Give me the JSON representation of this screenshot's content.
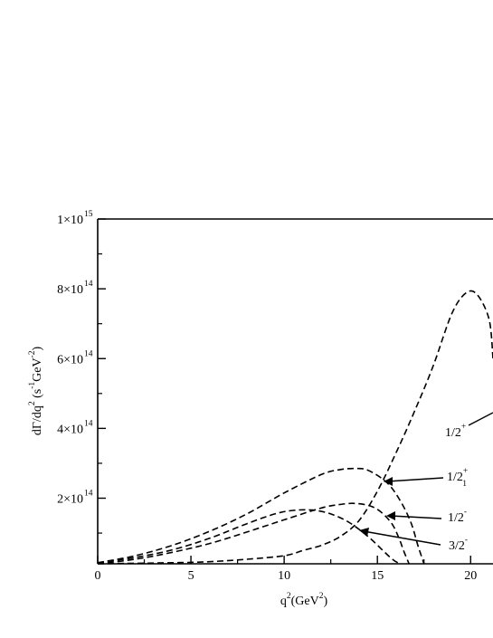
{
  "chart_data": {
    "type": "line",
    "title": "",
    "xlabel": {
      "base": "q",
      "base_sup": "2",
      "open": "(GeV",
      "unit_sup": "2",
      "close": ")"
    },
    "ylabel": {
      "p1": "dΓ/dq",
      "p1_sup": "2",
      "p2": " (s",
      "p2_sup": "-1",
      "p3": "GeV",
      "p3_sup": "-2",
      "p4": ")"
    },
    "xlim": [
      0,
      21.2
    ],
    "ylim": [
      12000000000000.0,
      1000000000000000.0
    ],
    "xticks": [
      {
        "value": 0,
        "label": "0"
      },
      {
        "value": 5,
        "label": "5"
      },
      {
        "value": 10,
        "label": "10"
      },
      {
        "value": 15,
        "label": "15"
      },
      {
        "value": 20,
        "label": "20"
      }
    ],
    "yticks": [
      {
        "value": 200000000000000.0,
        "mant": "2×10",
        "exp": "14"
      },
      {
        "value": 400000000000000.0,
        "mant": "4×10",
        "exp": "14"
      },
      {
        "value": 600000000000000.0,
        "mant": "6×10",
        "exp": "14"
      },
      {
        "value": 800000000000000.0,
        "mant": "8×10",
        "exp": "14"
      },
      {
        "value": 1000000000000000.0,
        "mant": "1×10",
        "exp": "15"
      }
    ],
    "series": [
      {
        "name": "1/2+",
        "x": [
          0,
          4,
          6,
          8,
          10,
          11,
          12,
          13,
          14,
          15,
          16,
          17,
          18,
          19,
          19.8,
          20.4,
          21.0,
          21.2
        ],
        "y": [
          12000000000000.0,
          15000000000000.0,
          18000000000000.0,
          25000000000000.0,
          35000000000000.0,
          50000000000000.0,
          65000000000000.0,
          90000000000000.0,
          135000000000000.0,
          220000000000000.0,
          330000000000000.0,
          450000000000000.0,
          580000000000000.0,
          730000000000000.0,
          790000000000000.0,
          780000000000000.0,
          710000000000000.0,
          600000000000000.0
        ]
      },
      {
        "name": "1/2+1",
        "x": [
          0,
          2,
          4,
          6,
          8,
          10,
          12,
          13,
          13.8,
          14.5,
          15.5,
          16.2,
          16.8,
          17.2,
          17.5
        ],
        "y": [
          15000000000000.0,
          35000000000000.0,
          65000000000000.0,
          105000000000000.0,
          155000000000000.0,
          215000000000000.0,
          268000000000000.0,
          282000000000000.0,
          285000000000000.0,
          280000000000000.0,
          245000000000000.0,
          195000000000000.0,
          130000000000000.0,
          60000000000000.0,
          12000000000000.0
        ]
      },
      {
        "name": "1/2-",
        "x": [
          0,
          2,
          4,
          6,
          8,
          10,
          12,
          13,
          13.8,
          14.6,
          15.2,
          15.8,
          16.2,
          16.4,
          16.7
        ],
        "y": [
          12000000000000.0,
          25000000000000.0,
          45000000000000.0,
          70000000000000.0,
          103000000000000.0,
          138000000000000.0,
          172000000000000.0,
          182000000000000.0,
          185000000000000.0,
          178000000000000.0,
          160000000000000.0,
          125000000000000.0,
          80000000000000.0,
          50000000000000.0,
          12000000000000.0
        ]
      },
      {
        "name": "3/2-",
        "x": [
          0,
          2,
          4,
          6,
          8,
          9.5,
          10.5,
          11.5,
          12.5,
          13.5,
          14.5,
          15.2,
          15.8,
          16.2
        ],
        "y": [
          15000000000000.0,
          30000000000000.0,
          52000000000000.0,
          85000000000000.0,
          127000000000000.0,
          155000000000000.0,
          165000000000000.0,
          166000000000000.0,
          155000000000000.0,
          130000000000000.0,
          90000000000000.0,
          55000000000000.0,
          25000000000000.0,
          12000000000000.0
        ]
      }
    ],
    "annotations": [
      {
        "series": "1/2+",
        "main": "1/2",
        "sup": "+",
        "sub": ""
      },
      {
        "series": "1/2+1",
        "main": "1/2",
        "sup": "+",
        "sub": "1"
      },
      {
        "series": "1/2-",
        "main": "1/2",
        "sup": "-",
        "sub": ""
      },
      {
        "series": "3/2-",
        "main": "3/2",
        "sup": "-",
        "sub": ""
      }
    ],
    "grid": false,
    "legend": "none",
    "line_style": "dashed",
    "line_color": "#000000"
  }
}
